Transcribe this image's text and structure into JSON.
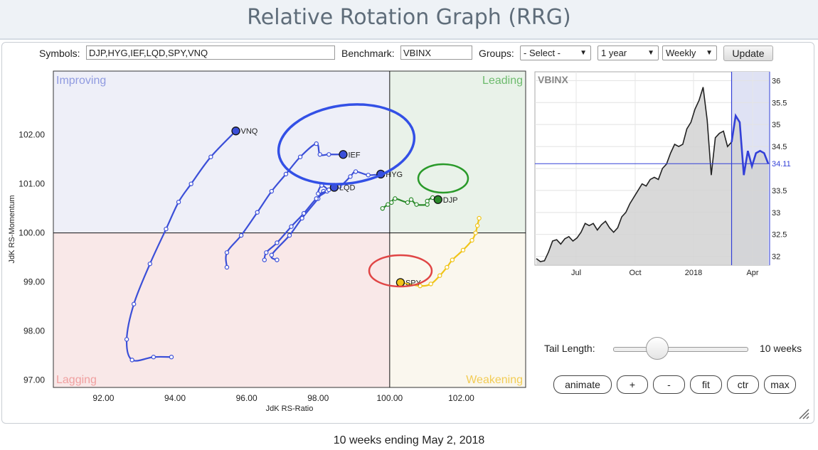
{
  "title": "Relative Rotation Graph (RRG)",
  "controls": {
    "symbols_label": "Symbols:",
    "symbols_value": "DJP,HYG,IEF,LQD,SPY,VNQ",
    "benchmark_label": "Benchmark:",
    "benchmark_value": "VBINX",
    "groups_label": "Groups:",
    "groups_value": "- Select -",
    "period_value": "1 year",
    "frequency_value": "Weekly",
    "update_label": "Update"
  },
  "rrg": {
    "xlabel": "JdK RS-Ratio",
    "ylabel": "JdK RS-Momentum",
    "xlim": [
      90.6,
      103.8
    ],
    "ylim": [
      96.85,
      103.3
    ],
    "x_ticks": [
      "92.00",
      "94.00",
      "96.00",
      "98.00",
      "100.00",
      "102.00"
    ],
    "y_ticks": [
      "97.00",
      "98.00",
      "99.00",
      "100.00",
      "101.00",
      "102.00"
    ],
    "quadrants": {
      "improving": "Improving",
      "leading": "Leading",
      "lagging": "Lagging",
      "weakening": "Weakening"
    },
    "series": [
      {
        "name": "VNQ",
        "color": "#3b4fd8",
        "points": [
          [
            93.9,
            97.47
          ],
          [
            93.4,
            97.47
          ],
          [
            92.8,
            97.41
          ],
          [
            92.65,
            97.83
          ],
          [
            92.85,
            98.55
          ],
          [
            93.3,
            99.37
          ],
          [
            93.75,
            100.08
          ],
          [
            94.1,
            100.63
          ],
          [
            94.45,
            101.0
          ],
          [
            95.0,
            101.55
          ],
          [
            95.7,
            102.08
          ]
        ]
      },
      {
        "name": "IEF",
        "color": "#3b4fd8",
        "points": [
          [
            95.45,
            99.3
          ],
          [
            95.45,
            99.6
          ],
          [
            95.85,
            99.95
          ],
          [
            96.3,
            100.42
          ],
          [
            96.7,
            100.85
          ],
          [
            97.1,
            101.2
          ],
          [
            97.5,
            101.55
          ],
          [
            97.95,
            101.82
          ],
          [
            98.05,
            101.6
          ],
          [
            98.3,
            101.6
          ],
          [
            98.7,
            101.6
          ]
        ]
      },
      {
        "name": "HYG",
        "color": "#3b4fd8",
        "points": [
          [
            96.85,
            99.45
          ],
          [
            96.7,
            99.55
          ],
          [
            97.2,
            99.95
          ],
          [
            97.55,
            100.3
          ],
          [
            98.0,
            100.7
          ],
          [
            98.15,
            100.85
          ],
          [
            98.6,
            100.95
          ],
          [
            98.9,
            101.15
          ],
          [
            99.05,
            101.25
          ],
          [
            99.4,
            101.18
          ],
          [
            99.75,
            101.2
          ]
        ]
      },
      {
        "name": "LQD",
        "color": "#3b4fd8",
        "points": [
          [
            96.5,
            99.45
          ],
          [
            96.55,
            99.6
          ],
          [
            96.85,
            99.8
          ],
          [
            97.25,
            100.13
          ],
          [
            97.6,
            100.4
          ],
          [
            97.95,
            100.7
          ],
          [
            98.25,
            100.85
          ],
          [
            98.0,
            100.8
          ],
          [
            98.1,
            100.97
          ],
          [
            98.3,
            100.88
          ],
          [
            98.45,
            100.93
          ]
        ]
      },
      {
        "name": "DJP",
        "color": "#2a8a2a",
        "points": [
          [
            99.8,
            100.5
          ],
          [
            99.95,
            100.58
          ],
          [
            100.05,
            100.62
          ],
          [
            100.15,
            100.7
          ],
          [
            100.5,
            100.62
          ],
          [
            100.6,
            100.68
          ],
          [
            100.75,
            100.58
          ],
          [
            101.05,
            100.58
          ],
          [
            101.05,
            100.65
          ],
          [
            101.2,
            100.72
          ],
          [
            101.35,
            100.68
          ]
        ]
      },
      {
        "name": "SPY",
        "color": "#f0c419",
        "points": [
          [
            102.5,
            100.3
          ],
          [
            102.45,
            100.15
          ],
          [
            102.4,
            100.0
          ],
          [
            102.3,
            99.85
          ],
          [
            102.05,
            99.65
          ],
          [
            101.75,
            99.45
          ],
          [
            101.6,
            99.3
          ],
          [
            101.4,
            99.13
          ],
          [
            101.15,
            98.96
          ],
          [
            100.85,
            98.92
          ],
          [
            100.3,
            98.99
          ]
        ]
      }
    ],
    "highlight_colors": {
      "blue": "#3350e6",
      "green": "#2a9a2a",
      "red": "#e04545"
    }
  },
  "mini_chart": {
    "symbol": "VBINX",
    "ylim": [
      31.8,
      36.2
    ],
    "y_ticks": [
      "36",
      "35.5",
      "35",
      "34.5",
      "34",
      "33.5",
      "33",
      "32.5",
      "32"
    ],
    "last_label": "34.11",
    "last_value": 34.11,
    "x_ticks": [
      "Jul",
      "Oct",
      "2018",
      "Apr"
    ],
    "values": [
      31.95,
      31.88,
      31.9,
      32.1,
      32.35,
      32.38,
      32.28,
      32.4,
      32.45,
      32.35,
      32.42,
      32.55,
      32.75,
      32.7,
      32.75,
      32.6,
      32.72,
      32.8,
      32.65,
      32.55,
      32.65,
      32.9,
      33.0,
      33.2,
      33.35,
      33.5,
      33.65,
      33.6,
      33.75,
      33.8,
      33.75,
      34.0,
      34.1,
      34.35,
      34.55,
      34.5,
      34.55,
      34.9,
      35.05,
      35.35,
      35.55,
      35.85,
      35.1,
      33.85,
      34.7,
      34.8,
      34.85,
      34.5,
      34.6,
      35.2,
      35.05,
      33.85,
      34.4,
      34.05,
      34.35,
      34.4,
      34.35,
      34.11
    ],
    "shade_start_index": 48
  },
  "tail": {
    "label": "Tail Length:",
    "value_label": "10 weeks",
    "fraction": 0.33
  },
  "buttons": [
    "animate",
    "+",
    "-",
    "fit",
    "ctr",
    "max"
  ],
  "footer": "10 weeks ending May 2, 2018"
}
